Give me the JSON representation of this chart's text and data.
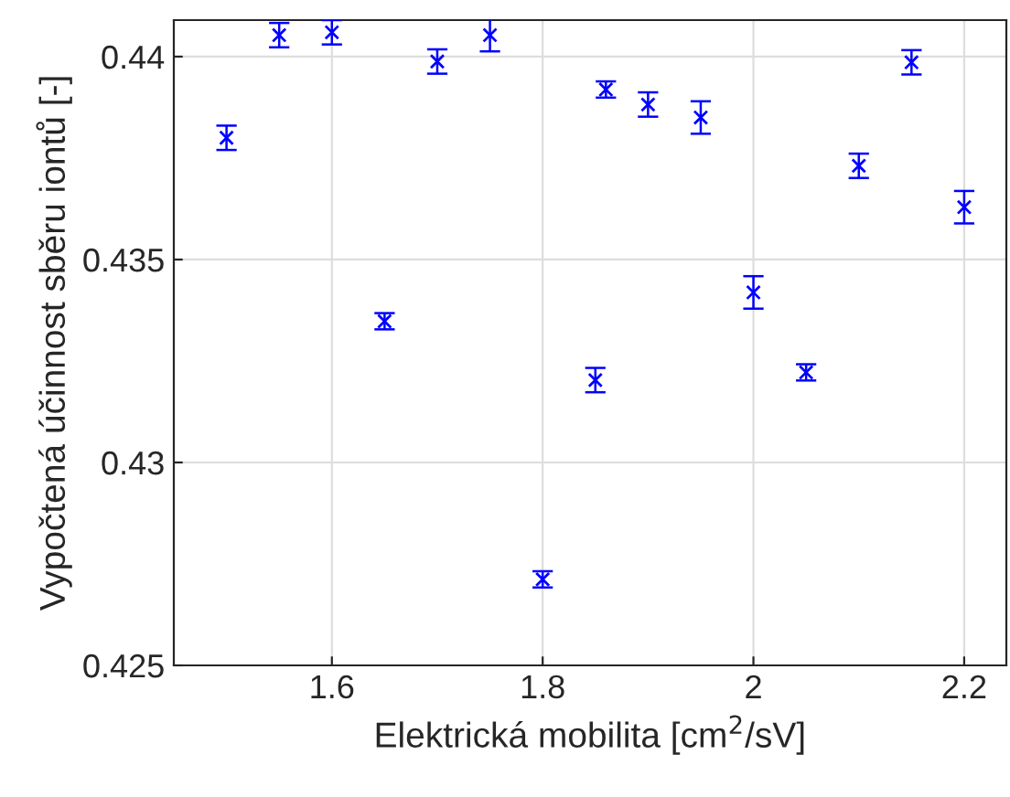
{
  "chart_data": {
    "type": "scatter",
    "xlabel": "Elektrická mobilita [cm$^{2}$/sV]",
    "ylabel": "Vypočtená účinnost sběru iontů [-]",
    "x": [
      1.5,
      1.55,
      1.6,
      1.65,
      1.7,
      1.75,
      1.8,
      1.85,
      1.86,
      1.9,
      1.95,
      2.0,
      2.05,
      2.1,
      2.15,
      2.2
    ],
    "series": [
      {
        "color": "#0000ff",
        "values": [
          0.438,
          0.44053,
          0.4406,
          0.43348,
          0.43988,
          0.44053,
          0.42712,
          0.43203,
          0.43919,
          0.43882,
          0.4385,
          0.43419,
          0.43222,
          0.43731,
          0.43986,
          0.43629
        ],
        "errors": [
          0.0003,
          0.0003,
          0.0003,
          0.0002,
          0.0003,
          0.0004,
          0.0002,
          0.0003,
          0.0002,
          0.0003,
          0.0004,
          0.0004,
          0.0002,
          0.0003,
          0.0003,
          0.0004
        ]
      }
    ],
    "xlim": [
      1.45,
      2.24
    ],
    "ylim": [
      0.425,
      0.4409
    ],
    "xticks": [
      1.6,
      1.8,
      2,
      2.2
    ],
    "yticks": [
      0.425,
      0.43,
      0.435,
      0.44
    ],
    "grid": true,
    "marker": "cross",
    "legend": false
  }
}
